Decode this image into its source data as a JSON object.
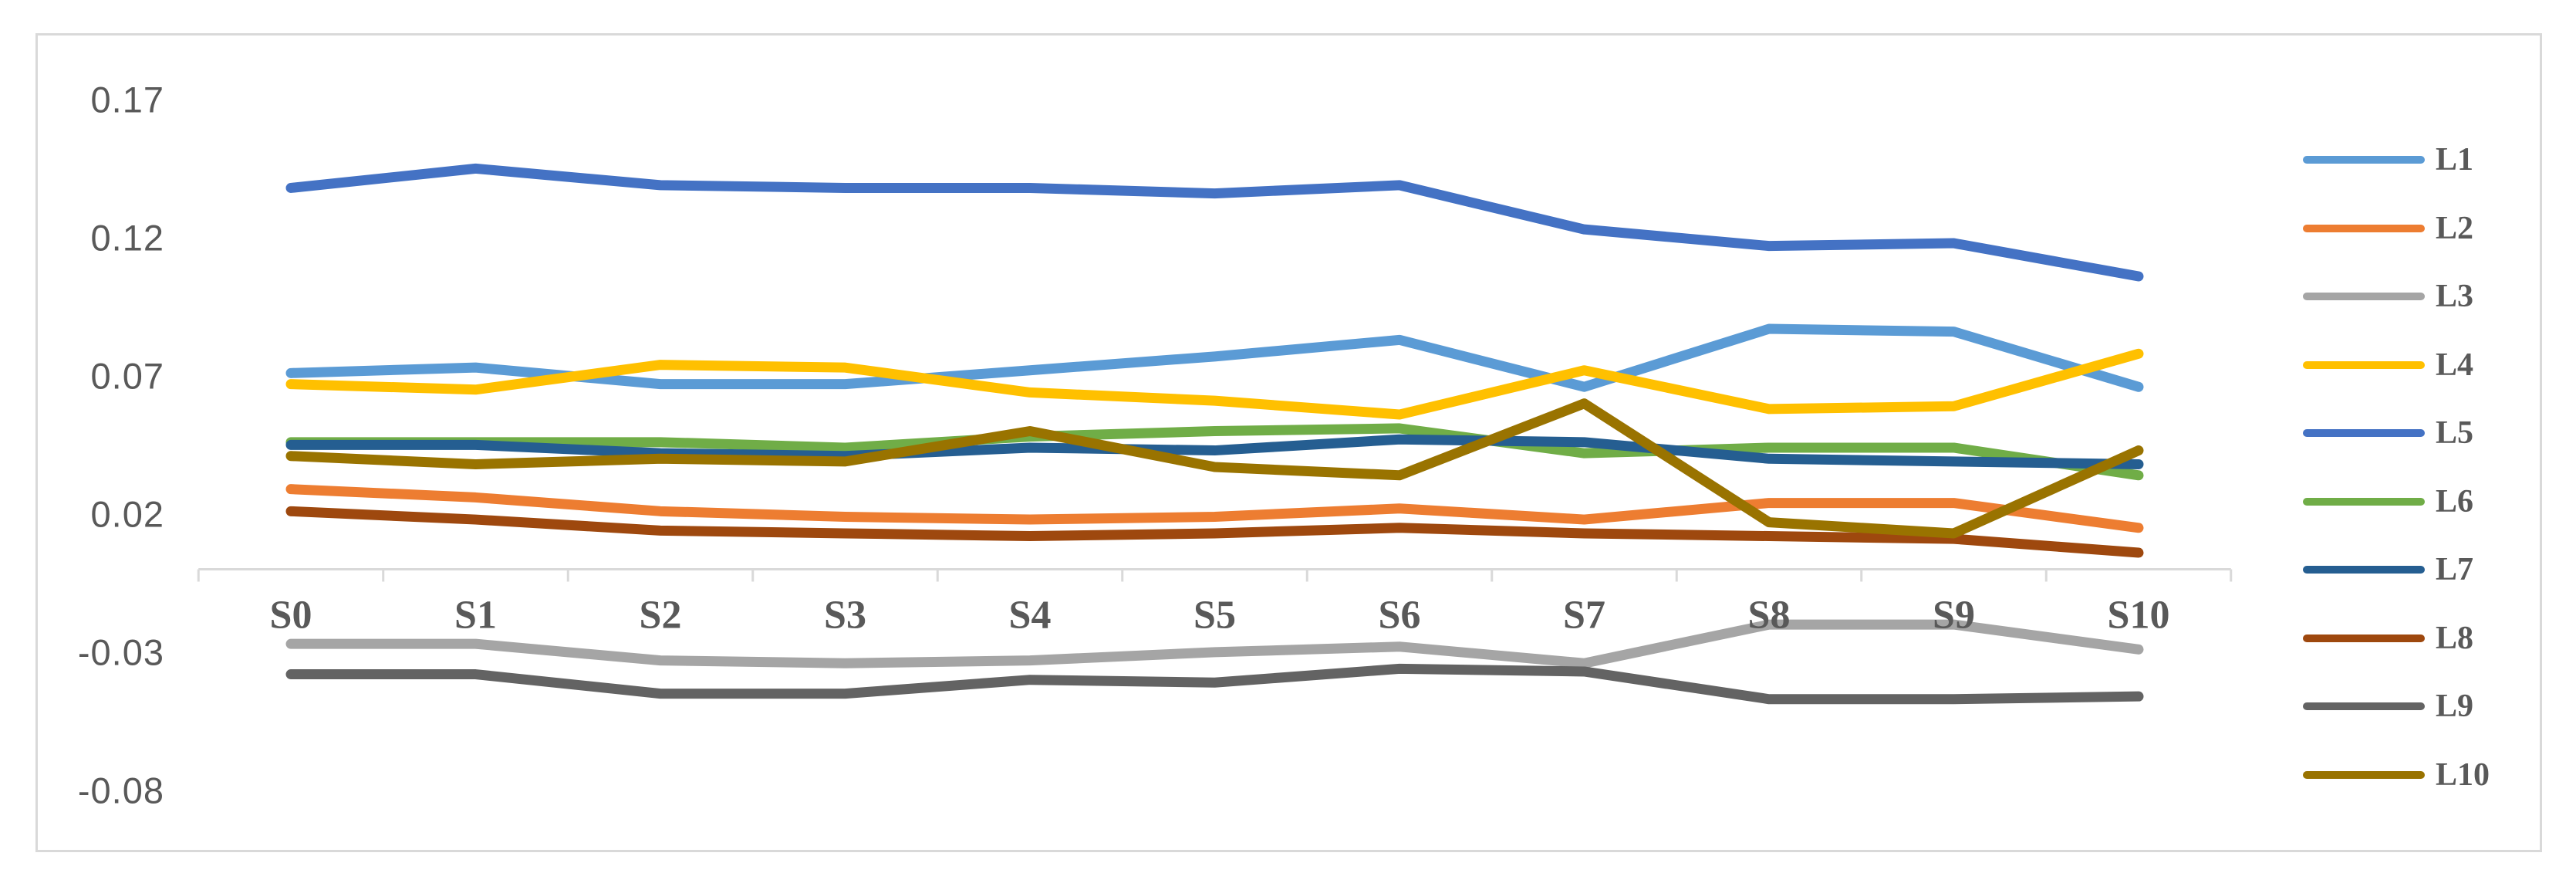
{
  "window": {
    "background_color": "#ffffff",
    "frame_border_color": "#d9d9d9"
  },
  "chart_data": {
    "type": "line",
    "title": "",
    "xlabel": "",
    "ylabel": "",
    "grid": "off",
    "legend_position": "right",
    "axis_color": "#d9d9d9",
    "text_color": "#595959",
    "ylim": [
      -0.08,
      0.17
    ],
    "yticks": [
      0.17,
      0.12,
      0.07,
      0.02,
      -0.03,
      -0.08
    ],
    "ytick_labels": [
      "0.17",
      "0.12",
      "0.07",
      "0.02",
      "-0.03",
      "-0.08"
    ],
    "categories": [
      "S0",
      "S1",
      "S2",
      "S3",
      "S4",
      "S5",
      "S6",
      "S7",
      "S8",
      "S9",
      "S10"
    ],
    "series": [
      {
        "name": "L1",
        "color": "#5B9BD5",
        "values": [
          0.071,
          0.073,
          0.067,
          0.067,
          0.072,
          0.077,
          0.083,
          0.066,
          0.087,
          0.086,
          0.066
        ]
      },
      {
        "name": "L2",
        "color": "#ED7D31",
        "values": [
          0.029,
          0.026,
          0.021,
          0.019,
          0.018,
          0.019,
          0.022,
          0.018,
          0.024,
          0.024,
          0.015
        ]
      },
      {
        "name": "L3",
        "color": "#A5A5A5",
        "values": [
          -0.027,
          -0.027,
          -0.033,
          -0.034,
          -0.033,
          -0.03,
          -0.028,
          -0.034,
          -0.02,
          -0.02,
          -0.029
        ]
      },
      {
        "name": "L4",
        "color": "#FFC000",
        "values": [
          0.067,
          0.065,
          0.074,
          0.073,
          0.064,
          0.061,
          0.056,
          0.072,
          0.058,
          0.059,
          0.078
        ]
      },
      {
        "name": "L5",
        "color": "#4472C4",
        "values": [
          0.138,
          0.145,
          0.139,
          0.138,
          0.138,
          0.136,
          0.139,
          0.123,
          0.117,
          0.118,
          0.106
        ]
      },
      {
        "name": "L6",
        "color": "#70AD47",
        "values": [
          0.046,
          0.046,
          0.046,
          0.044,
          0.048,
          0.05,
          0.051,
          0.042,
          0.044,
          0.044,
          0.034
        ]
      },
      {
        "name": "L7",
        "color": "#255E91",
        "values": [
          0.045,
          0.045,
          0.042,
          0.041,
          0.044,
          0.043,
          0.047,
          0.046,
          0.04,
          0.039,
          0.038
        ]
      },
      {
        "name": "L8",
        "color": "#9E480E",
        "values": [
          0.021,
          0.018,
          0.014,
          0.013,
          0.012,
          0.013,
          0.015,
          0.013,
          0.012,
          0.011,
          0.006
        ]
      },
      {
        "name": "L9",
        "color": "#636363",
        "values": [
          -0.038,
          -0.038,
          -0.045,
          -0.045,
          -0.04,
          -0.041,
          -0.036,
          -0.037,
          -0.047,
          -0.047,
          -0.046
        ]
      },
      {
        "name": "L10",
        "color": "#997300",
        "values": [
          0.041,
          0.038,
          0.04,
          0.039,
          0.05,
          0.037,
          0.034,
          0.06,
          0.017,
          0.013,
          0.043
        ]
      }
    ]
  }
}
